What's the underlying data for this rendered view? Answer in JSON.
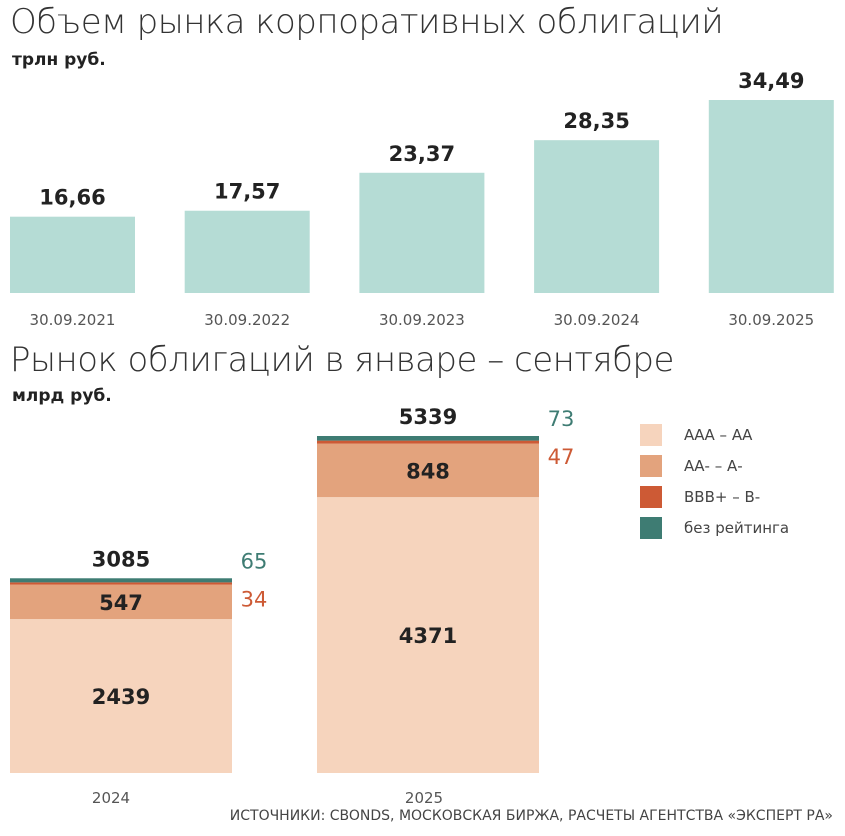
{
  "chart_data": [
    {
      "type": "bar",
      "title": "Объем рынка корпоративных облигаций",
      "ylabel": "трлн руб.",
      "categories": [
        "30.09.2021",
        "30.09.2022",
        "30.09.2023",
        "30.09.2024",
        "30.09.2025"
      ],
      "values": [
        16.66,
        17.57,
        23.37,
        28.35,
        34.49
      ],
      "value_labels": [
        "16,66",
        "17,57",
        "23,37",
        "28,35",
        "34,49"
      ],
      "ylim": [
        5,
        34.49
      ],
      "grid": false,
      "color": "#b5dcd5"
    },
    {
      "type": "bar",
      "stacked": true,
      "title": "Рынок облигаций в январе – сентябре",
      "ylabel": "млрд руб.",
      "categories": [
        "2024",
        "2025"
      ],
      "totals": [
        3085,
        5339
      ],
      "series": [
        {
          "name": "ААА – АА",
          "values": [
            2439,
            4371
          ],
          "color": "#f6d4bd"
        },
        {
          "name": "АА- – А-",
          "values": [
            547,
            848
          ],
          "color": "#e3a37d"
        },
        {
          "name": "ВВВ+ – В-",
          "values": [
            34,
            47
          ],
          "color": "#cd5a35"
        },
        {
          "name": "без рейтинга",
          "values": [
            65,
            73
          ],
          "color": "#3e7c73"
        }
      ],
      "ylim": [
        0,
        5339
      ],
      "grid": false,
      "legend": "right"
    }
  ],
  "source": "ИСТОЧНИКИ: CBONDS, МОСКОВСКАЯ БИРЖА, РАСЧЕТЫ АГЕНТСТВА «ЭКСПЕРТ РА»"
}
